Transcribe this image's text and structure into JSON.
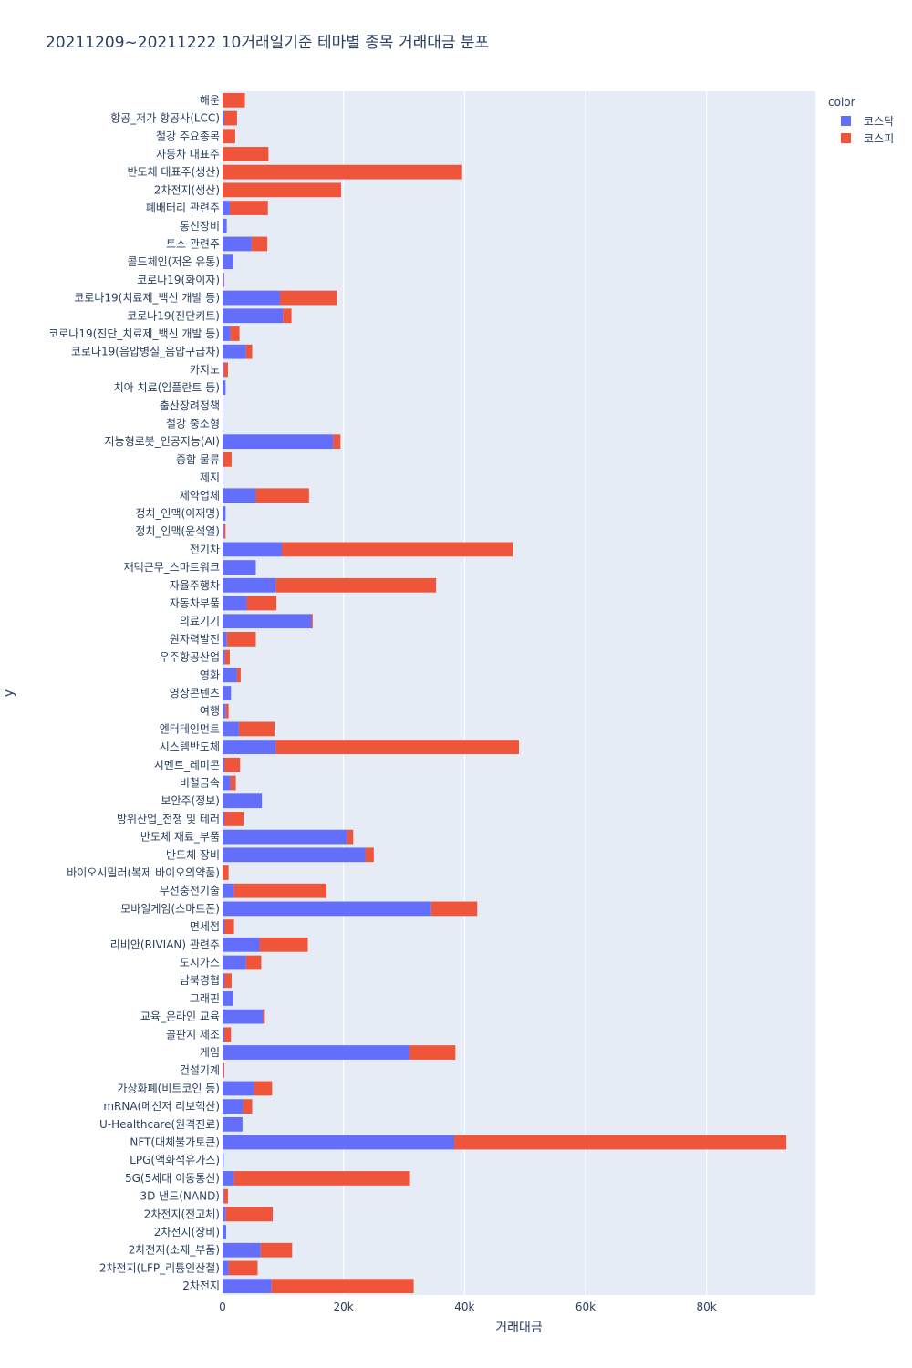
{
  "chart_data": {
    "type": "bar",
    "orientation": "horizontal",
    "barmode": "stack",
    "title": "20211209~20211222 10거래일기준 테마별 종목 거래대금 분포",
    "xlabel": "거래대금",
    "ylabel": "y",
    "xlim": [
      0,
      98000
    ],
    "xticks": [
      0,
      20000,
      40000,
      60000,
      80000
    ],
    "xtick_labels": [
      "0",
      "20k",
      "40k",
      "60k",
      "80k"
    ],
    "grid": true,
    "legend": {
      "title": "color",
      "position": "top-right"
    },
    "colors": {
      "코스닥": "#636efa",
      "코스피": "#ef553b"
    },
    "categories": [
      "해운",
      "항공_저가 항공사(LCC)",
      "철강 주요종목",
      "자동차 대표주",
      "반도체 대표주(생산)",
      "2차전지(생산)",
      "폐배터리 관련주",
      "통신장비",
      "토스 관련주",
      "콜드체인(저온 유통)",
      "코로나19(화이자)",
      "코로나19(치료제_백신 개발 등)",
      "코로나19(진단키트)",
      "코로나19(진단_치료제_백신 개발 등)",
      "코로나19(음압병실_음압구급차)",
      "카지노",
      "치아 치료(임플란트 등)",
      "출산장려정책",
      "철강 중소형",
      "지능형로봇_인공지능(AI)",
      "종합 물류",
      "제지",
      "제약업체",
      "정치_인맥(이재명)",
      "정치_인맥(윤석열)",
      "전기차",
      "재택근무_스마트워크",
      "자율주행차",
      "자동차부품",
      "의료기기",
      "원자력발전",
      "우주항공산업",
      "영화",
      "영상콘텐츠",
      "여행",
      "엔터테인먼트",
      "시스템반도체",
      "시멘트_레미콘",
      "비철금속",
      "보안주(정보)",
      "방위산업_전쟁 및 테러",
      "반도체 재료_부품",
      "반도체 장비",
      "바이오시밀러(복제 바이오의약품)",
      "무선충전기술",
      "모바일게임(스마트폰)",
      "면세점",
      "리비안(RIVIAN) 관련주",
      "도시가스",
      "남북경협",
      "그래핀",
      "교육_온라인 교육",
      "골판지 제조",
      "게임",
      "건설기계",
      "가상화폐(비트코인 등)",
      "mRNA(메신저 리보핵산)",
      "U-Healthcare(원격진료)",
      "NFT(대체불가토큰)",
      "LPG(액화석유가스)",
      "5G(5세대 이동통신)",
      "3D 낸드(NAND)",
      "2차전지(전고체)",
      "2차전지(장비)",
      "2차전지(소재_부품)",
      "2차전지(LFP_리튬인산철)",
      "2차전지"
    ],
    "series": [
      {
        "name": "코스닥",
        "values": [
          0,
          300,
          0,
          0,
          0,
          0,
          1200,
          700,
          4800,
          1800,
          200,
          9500,
          10000,
          1300,
          3900,
          200,
          500,
          100,
          100,
          18300,
          100,
          100,
          5500,
          500,
          200,
          9800,
          5500,
          8800,
          4000,
          14700,
          700,
          400,
          2400,
          1400,
          500,
          2700,
          8800,
          300,
          1300,
          6500,
          300,
          20600,
          23600,
          0,
          1900,
          34500,
          300,
          6100,
          3900,
          300,
          1800,
          6700,
          300,
          30900,
          100,
          5200,
          3400,
          3300,
          38300,
          200,
          1900,
          200,
          500,
          600,
          6300,
          1000,
          8100
        ]
      },
      {
        "name": "코스피",
        "values": [
          3700,
          2100,
          2100,
          7600,
          39600,
          19600,
          6300,
          0,
          2600,
          0,
          100,
          9400,
          1400,
          1500,
          1000,
          700,
          0,
          0,
          0,
          1200,
          1400,
          0,
          8800,
          0,
          300,
          38200,
          0,
          26500,
          4900,
          200,
          4800,
          800,
          600,
          0,
          500,
          5900,
          40200,
          2600,
          900,
          0,
          3200,
          1000,
          1400,
          1000,
          15300,
          7600,
          1600,
          8000,
          2500,
          1200,
          0,
          300,
          1100,
          7600,
          200,
          3000,
          1500,
          0,
          54900,
          0,
          29100,
          700,
          7800,
          0,
          5200,
          4800,
          23500
        ]
      }
    ]
  }
}
